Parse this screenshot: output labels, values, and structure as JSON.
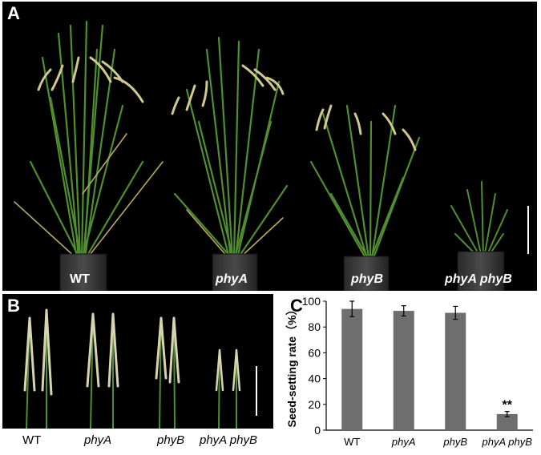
{
  "panelA": {
    "letter": "A",
    "labels": [
      "WT",
      "phyA",
      "phyB",
      "phyA phyB"
    ]
  },
  "panelB": {
    "letter": "B",
    "labels": [
      "WT",
      "phyA",
      "phyB",
      "phyA phyB"
    ]
  },
  "panelC": {
    "letter": "C"
  },
  "chart_data": {
    "type": "bar",
    "categories": [
      "WT",
      "phyA",
      "phyB",
      "phyA phyB"
    ],
    "values": [
      94,
      92.5,
      91,
      12.5
    ],
    "errors": [
      6,
      4,
      5,
      2
    ],
    "annotations": [
      {
        "category": "phyA phyB",
        "text": "**"
      }
    ],
    "title": "",
    "xlabel": "",
    "ylabel": "Seed-setting rate（%）",
    "ylim": [
      0,
      100
    ],
    "yticks": [
      0,
      20,
      40,
      60,
      80,
      100
    ],
    "bar_color": "#6e6e6e",
    "grid": false
  },
  "colors": {
    "background_photo": "#000000",
    "leaf_green": "#4e8f2e",
    "panicle": "#c9c48a",
    "pot": "#3a3a3a"
  }
}
